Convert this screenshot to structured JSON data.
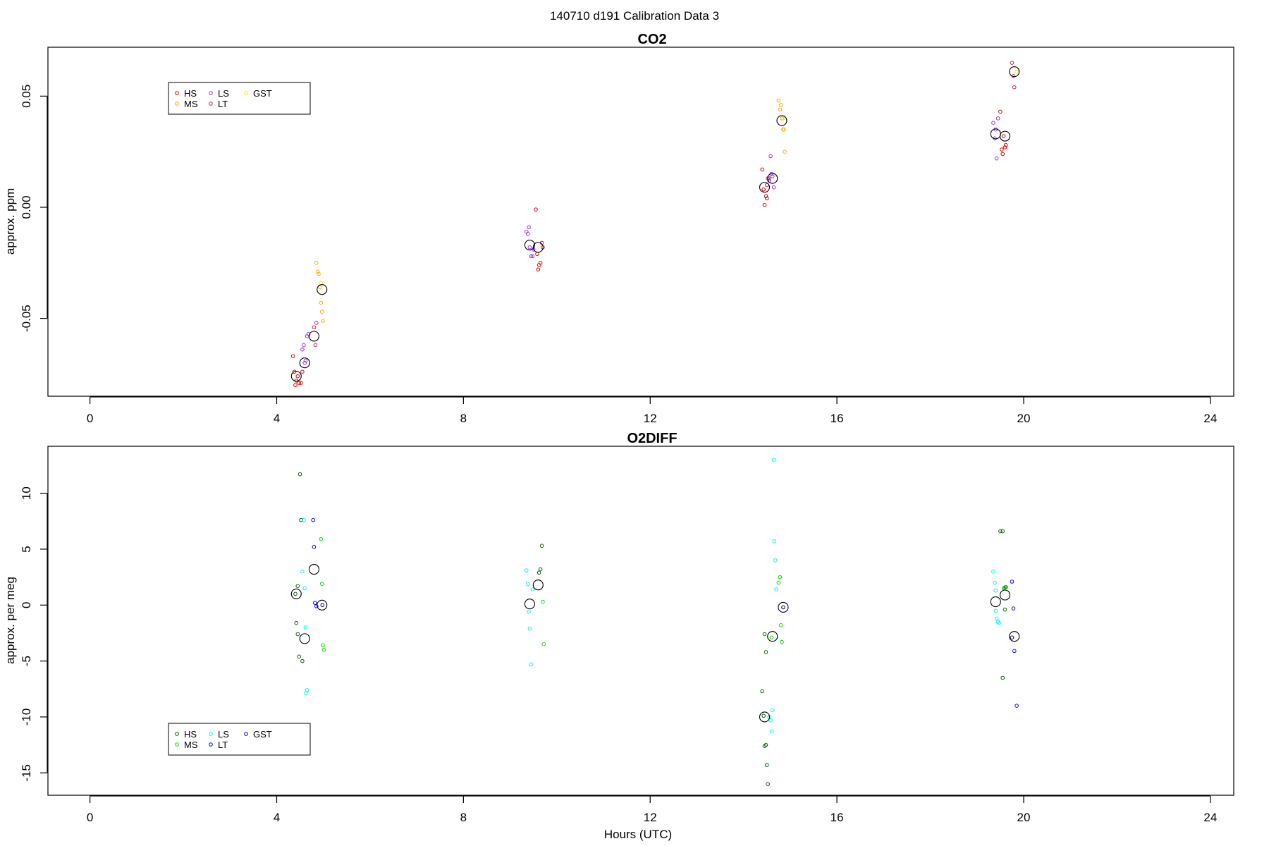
{
  "page_title": "140710   d191   Calibration Data 3",
  "chart_data": [
    {
      "type": "scatter",
      "title": "CO2",
      "xlabel": "",
      "ylabel": "approx. ppm",
      "xlim": [
        -0.9,
        24.5
      ],
      "ylim": [
        -0.085,
        0.072
      ],
      "xticks": [
        0,
        4,
        8,
        12,
        16,
        20,
        24
      ],
      "yticks": [
        -0.05,
        0,
        0.05
      ],
      "ytick_labels": [
        "-0.05",
        "0.00",
        "0.05"
      ],
      "legend": {
        "placement": "top-left",
        "entries": [
          {
            "label": "HS",
            "color": "#e00000"
          },
          {
            "label": "MS",
            "color": "#ffa500"
          },
          {
            "label": "LS",
            "color": "#9933ee"
          },
          {
            "label": "LT",
            "color": "#cc1a66"
          },
          {
            "label": "GST",
            "color": "#ffe000"
          }
        ]
      },
      "series": [
        {
          "name": "HS",
          "color": "#e00000",
          "points": [
            [
              4.35,
              -0.067
            ],
            [
              4.38,
              -0.074
            ],
            [
              4.4,
              -0.08
            ],
            [
              4.42,
              -0.078
            ],
            [
              4.45,
              -0.076
            ],
            [
              4.48,
              -0.079
            ],
            [
              4.52,
              -0.079
            ],
            [
              4.55,
              -0.074
            ],
            [
              9.55,
              -0.001
            ],
            [
              9.58,
              -0.021
            ],
            [
              9.6,
              -0.028
            ],
            [
              9.62,
              -0.026
            ],
            [
              9.65,
              -0.025
            ],
            [
              9.68,
              -0.016
            ],
            [
              14.4,
              0.017
            ],
            [
              14.43,
              0.008
            ],
            [
              14.45,
              0.001
            ],
            [
              14.48,
              0.005
            ],
            [
              14.5,
              0.004
            ],
            [
              19.5,
              0.043
            ],
            [
              19.53,
              0.026
            ],
            [
              19.55,
              0.024
            ],
            [
              19.57,
              0.032
            ],
            [
              19.6,
              0.027
            ],
            [
              19.62,
              0.028
            ]
          ]
        },
        {
          "name": "MS",
          "color": "#ffa500",
          "points": [
            [
              4.85,
              -0.025
            ],
            [
              4.88,
              -0.029
            ],
            [
              4.9,
              -0.03
            ],
            [
              4.93,
              -0.036
            ],
            [
              4.95,
              -0.043
            ],
            [
              4.97,
              -0.047
            ],
            [
              4.99,
              -0.051
            ],
            [
              14.75,
              0.048
            ],
            [
              14.78,
              0.044
            ],
            [
              14.8,
              0.046
            ],
            [
              14.82,
              0.04
            ],
            [
              14.85,
              0.035
            ],
            [
              14.86,
              0.035
            ],
            [
              14.88,
              0.025
            ]
          ]
        },
        {
          "name": "LS",
          "color": "#9933ee",
          "points": [
            [
              4.55,
              -0.064
            ],
            [
              4.58,
              -0.062
            ],
            [
              4.6,
              -0.07
            ],
            [
              4.62,
              -0.069
            ],
            [
              4.65,
              -0.058
            ],
            [
              4.68,
              -0.057
            ],
            [
              9.35,
              -0.011
            ],
            [
              9.38,
              -0.012
            ],
            [
              9.4,
              -0.009
            ],
            [
              9.42,
              -0.018
            ],
            [
              9.45,
              -0.022
            ],
            [
              9.48,
              -0.022
            ],
            [
              9.5,
              -0.019
            ],
            [
              14.55,
              0.013
            ],
            [
              14.58,
              0.023
            ],
            [
              14.6,
              0.015
            ],
            [
              14.62,
              0.014
            ],
            [
              14.65,
              0.009
            ],
            [
              19.35,
              0.038
            ],
            [
              19.38,
              0.031
            ],
            [
              19.4,
              0.035
            ],
            [
              19.42,
              0.022
            ],
            [
              19.45,
              0.04
            ]
          ]
        },
        {
          "name": "LT",
          "color": "#cc1a66",
          "points": [
            [
              4.8,
              -0.054
            ],
            [
              4.83,
              -0.062
            ],
            [
              4.85,
              -0.052
            ],
            [
              9.7,
              -0.018
            ],
            [
              14.5,
              0.01
            ],
            [
              14.52,
              0.013
            ],
            [
              14.55,
              0.012
            ],
            [
              19.75,
              0.065
            ],
            [
              19.8,
              0.054
            ],
            [
              19.78,
              0.059
            ]
          ]
        },
        {
          "name": "GST",
          "color": "#ffe000",
          "points": [
            [
              4.95,
              -0.034
            ],
            [
              14.85,
              0.04
            ],
            [
              19.85,
              0.061
            ]
          ]
        }
      ],
      "means": [
        [
          4.42,
          -0.076
        ],
        [
          4.6,
          -0.07
        ],
        [
          4.8,
          -0.058
        ],
        [
          4.97,
          -0.037
        ],
        [
          9.42,
          -0.017
        ],
        [
          9.6,
          -0.018
        ],
        [
          14.45,
          0.009
        ],
        [
          14.62,
          0.013
        ],
        [
          14.82,
          0.039
        ],
        [
          19.4,
          0.033
        ],
        [
          19.6,
          0.032
        ],
        [
          19.8,
          0.061
        ]
      ]
    },
    {
      "type": "scatter",
      "title": "O2DIFF",
      "xlabel": "Hours (UTC)",
      "ylabel": "approx. per meg",
      "xlim": [
        -0.9,
        24.5
      ],
      "ylim": [
        -17,
        14.2
      ],
      "xticks": [
        0,
        4,
        8,
        12,
        16,
        20,
        24
      ],
      "yticks": [
        -15,
        -10,
        -5,
        0,
        5,
        10
      ],
      "ytick_labels": [
        "-15",
        "-10",
        "-5",
        "0",
        "5",
        "10"
      ],
      "legend": {
        "placement": "bottom-left",
        "entries": [
          {
            "label": "HS",
            "color": "#006400"
          },
          {
            "label": "MS",
            "color": "#00dd00"
          },
          {
            "label": "LS",
            "color": "#00eeee"
          },
          {
            "label": "LT",
            "color": "#0000ff"
          },
          {
            "label": "GST",
            "color": "#000090"
          }
        ]
      },
      "series": [
        {
          "name": "HS",
          "color": "#006400",
          "points": [
            [
              4.4,
              1.0
            ],
            [
              4.42,
              -1.6
            ],
            [
              4.45,
              -2.6
            ],
            [
              4.48,
              -4.6
            ],
            [
              4.5,
              11.7
            ],
            [
              4.52,
              7.6
            ],
            [
              4.55,
              -5.0
            ],
            [
              4.45,
              1.7
            ],
            [
              9.62,
              2.9
            ],
            [
              9.65,
              3.2
            ],
            [
              9.68,
              5.3
            ],
            [
              14.4,
              -7.7
            ],
            [
              14.43,
              -9.9
            ],
            [
              14.45,
              -12.6
            ],
            [
              14.48,
              -12.5
            ],
            [
              14.5,
              -14.3
            ],
            [
              14.52,
              -16.0
            ],
            [
              14.45,
              -2.6
            ],
            [
              14.48,
              -4.2
            ],
            [
              19.5,
              6.6
            ],
            [
              19.55,
              6.6
            ],
            [
              19.55,
              -6.5
            ],
            [
              19.58,
              1.5
            ],
            [
              19.6,
              -0.4
            ],
            [
              19.62,
              1.6
            ]
          ]
        },
        {
          "name": "MS",
          "color": "#00dd00",
          "points": [
            [
              4.95,
              5.9
            ],
            [
              4.97,
              1.9
            ],
            [
              4.99,
              -3.6
            ],
            [
              5.01,
              -4.0
            ],
            [
              9.7,
              0.3
            ],
            [
              9.72,
              -3.5
            ],
            [
              14.75,
              2.0
            ],
            [
              14.78,
              2.5
            ],
            [
              14.8,
              -1.8
            ],
            [
              14.82,
              -3.3
            ],
            [
              14.6,
              -2.9
            ],
            [
              19.6,
              1.6
            ]
          ]
        },
        {
          "name": "LS",
          "color": "#00eeee",
          "points": [
            [
              4.55,
              3.0
            ],
            [
              4.58,
              7.6
            ],
            [
              4.6,
              1.5
            ],
            [
              4.62,
              -2.0
            ],
            [
              4.65,
              -7.6
            ],
            [
              4.63,
              -7.9
            ],
            [
              9.35,
              3.1
            ],
            [
              9.38,
              1.9
            ],
            [
              9.4,
              -0.6
            ],
            [
              9.42,
              -2.1
            ],
            [
              9.45,
              -5.3
            ],
            [
              9.48,
              1.4
            ],
            [
              14.55,
              -10.0
            ],
            [
              14.58,
              -10.3
            ],
            [
              14.6,
              -11.3
            ],
            [
              14.62,
              -9.4
            ],
            [
              14.65,
              13.0
            ],
            [
              14.66,
              5.7
            ],
            [
              14.68,
              4.0
            ],
            [
              14.7,
              1.4
            ],
            [
              19.35,
              3.0
            ],
            [
              19.38,
              2.0
            ],
            [
              19.4,
              1.3
            ],
            [
              19.42,
              -1.2
            ],
            [
              19.45,
              -1.5
            ],
            [
              19.48,
              -1.6
            ],
            [
              19.4,
              -0.5
            ]
          ]
        },
        {
          "name": "LT",
          "color": "#0000ff",
          "points": [
            [
              4.78,
              7.6
            ],
            [
              4.8,
              5.2
            ],
            [
              4.82,
              0.2
            ],
            [
              4.85,
              -0.1
            ],
            [
              19.75,
              2.1
            ],
            [
              19.78,
              -0.3
            ],
            [
              19.8,
              -4.1
            ],
            [
              19.85,
              -9.0
            ]
          ]
        },
        {
          "name": "GST",
          "color": "#000090",
          "points": [
            [
              4.98,
              0.0
            ],
            [
              14.85,
              -0.2
            ],
            [
              19.75,
              -2.9
            ]
          ]
        }
      ],
      "means": [
        [
          4.42,
          1.0
        ],
        [
          4.6,
          -3.0
        ],
        [
          4.8,
          3.2
        ],
        [
          4.97,
          0.0
        ],
        [
          9.42,
          0.1
        ],
        [
          9.6,
          1.8
        ],
        [
          14.45,
          -10.0
        ],
        [
          14.62,
          -2.8
        ],
        [
          14.85,
          -0.2
        ],
        [
          19.4,
          0.3
        ],
        [
          19.6,
          0.9
        ],
        [
          19.8,
          -2.8
        ]
      ]
    }
  ]
}
